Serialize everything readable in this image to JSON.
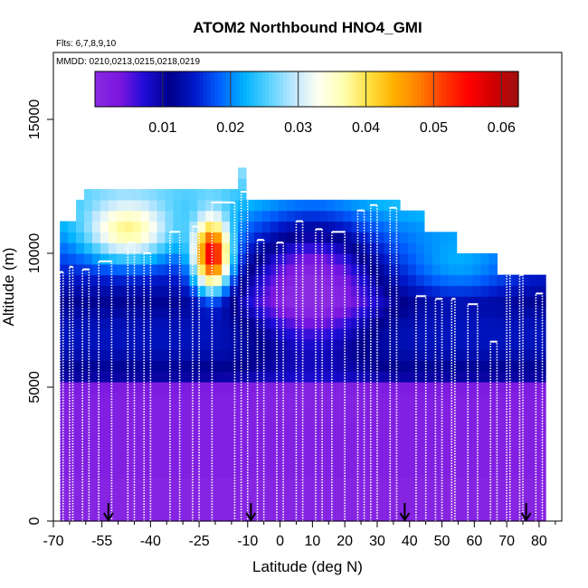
{
  "chart_data": {
    "type": "heatmap",
    "title": "ATOM2 Northbound HNO4_GMI",
    "flights_label": "Flts: 6,7,8,9,10",
    "dates_label": "MMDD: 0210,0213,0215,0218,0219",
    "xlabel": "Latitude (deg N)",
    "ylabel": "Altitude (m)",
    "xlim": [
      -70,
      87
    ],
    "ylim": [
      0,
      17500
    ],
    "x_ticks": [
      -70,
      -55,
      -40,
      -25,
      -10,
      0,
      10,
      20,
      30,
      40,
      50,
      60,
      70,
      80
    ],
    "x_tick_labels": [
      "-70",
      "-55",
      "-40",
      "-25",
      "-10",
      "0",
      "10",
      "20",
      "30",
      "40",
      "50",
      "60",
      "70",
      "80"
    ],
    "x_minor_ticks": [
      -65,
      -60,
      -50,
      -45,
      -35,
      -30,
      -20,
      -15,
      -5,
      5,
      15,
      25,
      35,
      45,
      55,
      65,
      75,
      85
    ],
    "y_ticks": [
      0,
      5000,
      10000,
      15000
    ],
    "y_tick_labels": [
      "0",
      "5000",
      "10000",
      "15000"
    ],
    "colorbar": {
      "range": [
        0,
        0.0625
      ],
      "ticks": [
        0.01,
        0.02,
        0.03,
        0.04,
        0.05,
        0.06
      ],
      "tick_labels": [
        "0.01",
        "0.02",
        "0.03",
        "0.04",
        "0.05",
        "0.06"
      ],
      "colors": [
        "#8a2be2",
        "#7b16e0",
        "#1e0cd8",
        "#00008b",
        "#0018c8",
        "#0060ff",
        "#00b2ff",
        "#5ad2ff",
        "#c0e8ff",
        "#fffff0",
        "#ffffb0",
        "#ffe040",
        "#ffb000",
        "#ff8000",
        "#ff3800",
        "#ff0000",
        "#d00000",
        "#a01010"
      ]
    },
    "profiles": [
      {
        "lat_start": -68,
        "lat_end": -67,
        "top": 9300
      },
      {
        "lat_start": -65,
        "lat_end": -64,
        "top": 9500
      },
      {
        "lat_start": -61,
        "lat_end": -59,
        "top": 9400
      },
      {
        "lat_start": -56,
        "lat_end": -52,
        "top": 9700
      },
      {
        "lat_start": -47,
        "lat_end": -45,
        "top": 10400
      },
      {
        "lat_start": -42,
        "lat_end": -40,
        "top": 10000
      },
      {
        "lat_start": -34,
        "lat_end": -31,
        "top": 10800
      },
      {
        "lat_start": -27,
        "lat_end": -25,
        "top": 11000
      },
      {
        "lat_start": -21,
        "lat_end": -14,
        "top": 11900
      },
      {
        "lat_start": -12,
        "lat_end": -10,
        "top": 12300
      },
      {
        "lat_start": -7,
        "lat_end": -5,
        "top": 10500
      },
      {
        "lat_start": -1,
        "lat_end": 1,
        "top": 10400
      },
      {
        "lat_start": 5,
        "lat_end": 7,
        "top": 11200
      },
      {
        "lat_start": 11,
        "lat_end": 13,
        "top": 10900
      },
      {
        "lat_start": 16,
        "lat_end": 20,
        "top": 10800
      },
      {
        "lat_start": 24,
        "lat_end": 26,
        "top": 11600
      },
      {
        "lat_start": 28,
        "lat_end": 30,
        "top": 11800
      },
      {
        "lat_start": 34,
        "lat_end": 36,
        "top": 11700
      },
      {
        "lat_start": 42,
        "lat_end": 45,
        "top": 8400
      },
      {
        "lat_start": 48,
        "lat_end": 50,
        "top": 8300
      },
      {
        "lat_start": 53,
        "lat_end": 54,
        "top": 8300
      },
      {
        "lat_start": 58,
        "lat_end": 61,
        "top": 8100
      },
      {
        "lat_start": 65,
        "lat_end": 67,
        "top": 6700
      },
      {
        "lat_start": 70,
        "lat_end": 71,
        "top": 9500
      },
      {
        "lat_start": 74,
        "lat_end": 75,
        "top": 9200
      },
      {
        "lat_start": 79,
        "lat_end": 81,
        "top": 8500
      }
    ],
    "arrow_latitudes": [
      -53,
      -9,
      38.5,
      76
    ]
  }
}
